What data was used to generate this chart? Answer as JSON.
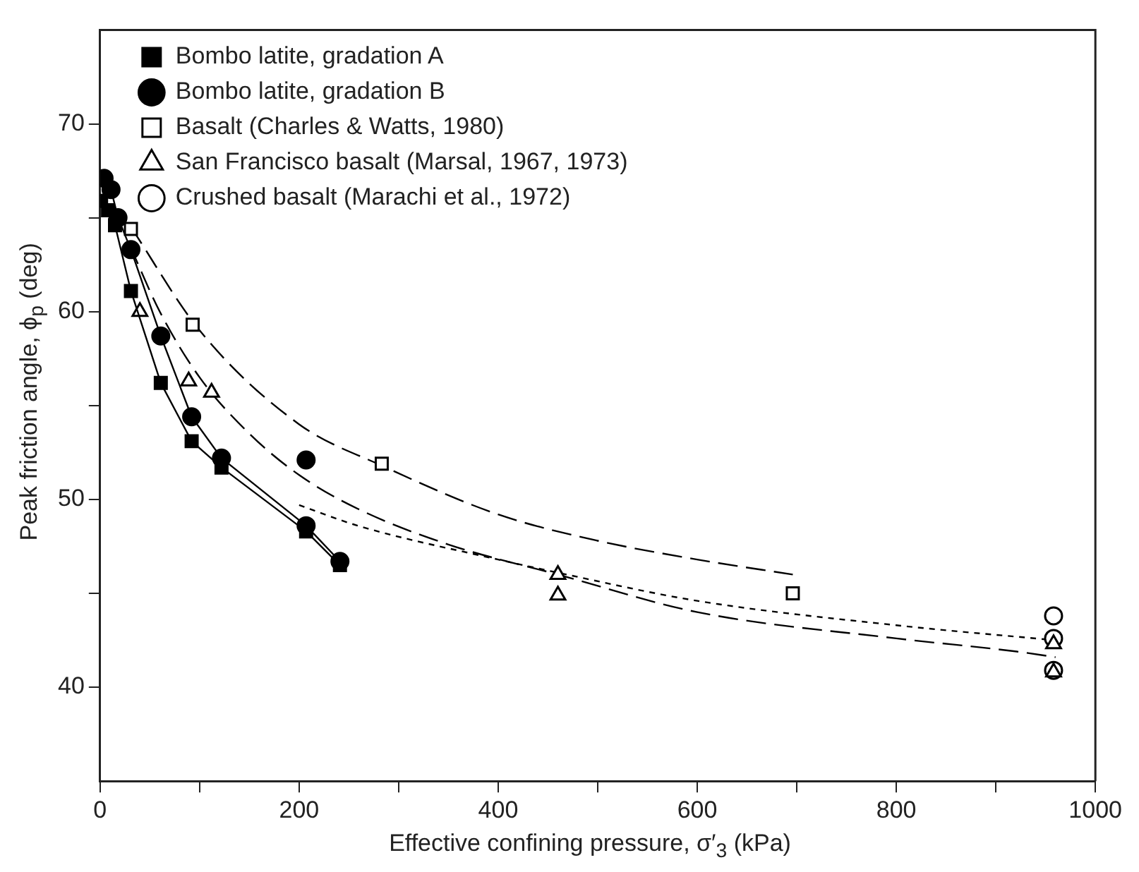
{
  "chart_data": {
    "type": "scatter",
    "xlabel": "Effective confining pressure, σ′$_{3}$ (kPa)",
    "ylabel": "Peak friction angle, ϕ$_{p}$ (deg)",
    "xlim": [
      0,
      1000
    ],
    "xticks": [
      0,
      {
        "value": 100,
        "label": null
      },
      200,
      {
        "value": 300,
        "label": null
      },
      400,
      {
        "value": 500,
        "label": null
      },
      600,
      {
        "value": 700,
        "label": null
      },
      800,
      {
        "value": 900,
        "label": null
      },
      1000
    ],
    "ylim": [
      35,
      75
    ],
    "yticks": [
      40,
      {
        "value": 45,
        "label": null
      },
      50,
      {
        "value": 55,
        "label": null
      },
      60,
      {
        "value": 65,
        "label": null
      },
      70
    ],
    "legend": "top left",
    "grid": false,
    "series": [
      {
        "name": "Bombo latite, gradation A",
        "type": "line",
        "marker": "square",
        "line_style": "solid",
        "color": "#000000",
        "x": [
          1,
          8,
          15,
          31,
          61,
          92,
          122,
          207,
          241
        ],
        "values": [
          65.9,
          65.4,
          64.6,
          61.1,
          56.2,
          53.1,
          51.7,
          48.3,
          46.5
        ]
      },
      {
        "name": "Bombo latite, gradation B",
        "type": "line",
        "marker": "circle",
        "line_style": "solid",
        "color": "#000000",
        "x": [
          4,
          11,
          18,
          31,
          61,
          92,
          122,
          207,
          241
        ],
        "values": [
          67.1,
          66.5,
          65,
          63.3,
          58.7,
          54.4,
          52.2,
          48.6,
          46.7
        ]
      },
      {
        "type": "scatter",
        "marker": "circle",
        "color": "#000000",
        "x": [
          207
        ],
        "values": [
          52.1
        ]
      },
      {
        "name": "Basalt (Charles & Watts, 1980)",
        "type": "scatter",
        "marker": "square",
        "color": "#000000",
        "x": [
          31,
          93,
          283,
          696
        ],
        "values": [
          64.4,
          59.3,
          51.9,
          45
        ]
      },
      {
        "name": "San Francisco basalt (Marsal, 1967, 1973)",
        "type": "scatter",
        "marker": "triangle",
        "color": "#000000",
        "x": [
          40,
          89,
          112,
          460,
          460,
          958,
          958
        ],
        "values": [
          60,
          56.3,
          55.7,
          46,
          44.9,
          42.3,
          40.8
        ]
      },
      {
        "name": "Crushed basalt (Marachi et al., 1972)",
        "type": "scatter",
        "marker": "circle",
        "color": "#000000",
        "x": [
          958,
          958,
          958
        ],
        "values": [
          43.8,
          42.6,
          40.9
        ]
      },
      {
        "type": "line",
        "marker": "none",
        "line_style": "dashed",
        "color": "#000000",
        "x": [
          31,
          100,
          200,
          283,
          400,
          500,
          600,
          696
        ],
        "values": [
          64.5,
          59,
          54,
          51.8,
          49.2,
          47.8,
          46.8,
          46
        ]
      },
      {
        "type": "line",
        "marker": "none",
        "line_style": "dashed",
        "color": "#000000",
        "x": [
          30,
          60,
          100,
          150,
          200,
          259,
          350,
          460,
          600,
          800,
          921,
          960
        ],
        "values": [
          63.5,
          60,
          56.5,
          53.5,
          51.3,
          49.5,
          47.6,
          46,
          44,
          42.6,
          41.9,
          41.6
        ]
      },
      {
        "type": "line",
        "marker": "none",
        "line_style": "dotted",
        "color": "#000000",
        "x": [
          200,
          259,
          400,
          460,
          600,
          800,
          960
        ],
        "values": [
          49.7,
          48.6,
          46.8,
          46.1,
          44.6,
          43.3,
          42.5
        ]
      }
    ]
  }
}
